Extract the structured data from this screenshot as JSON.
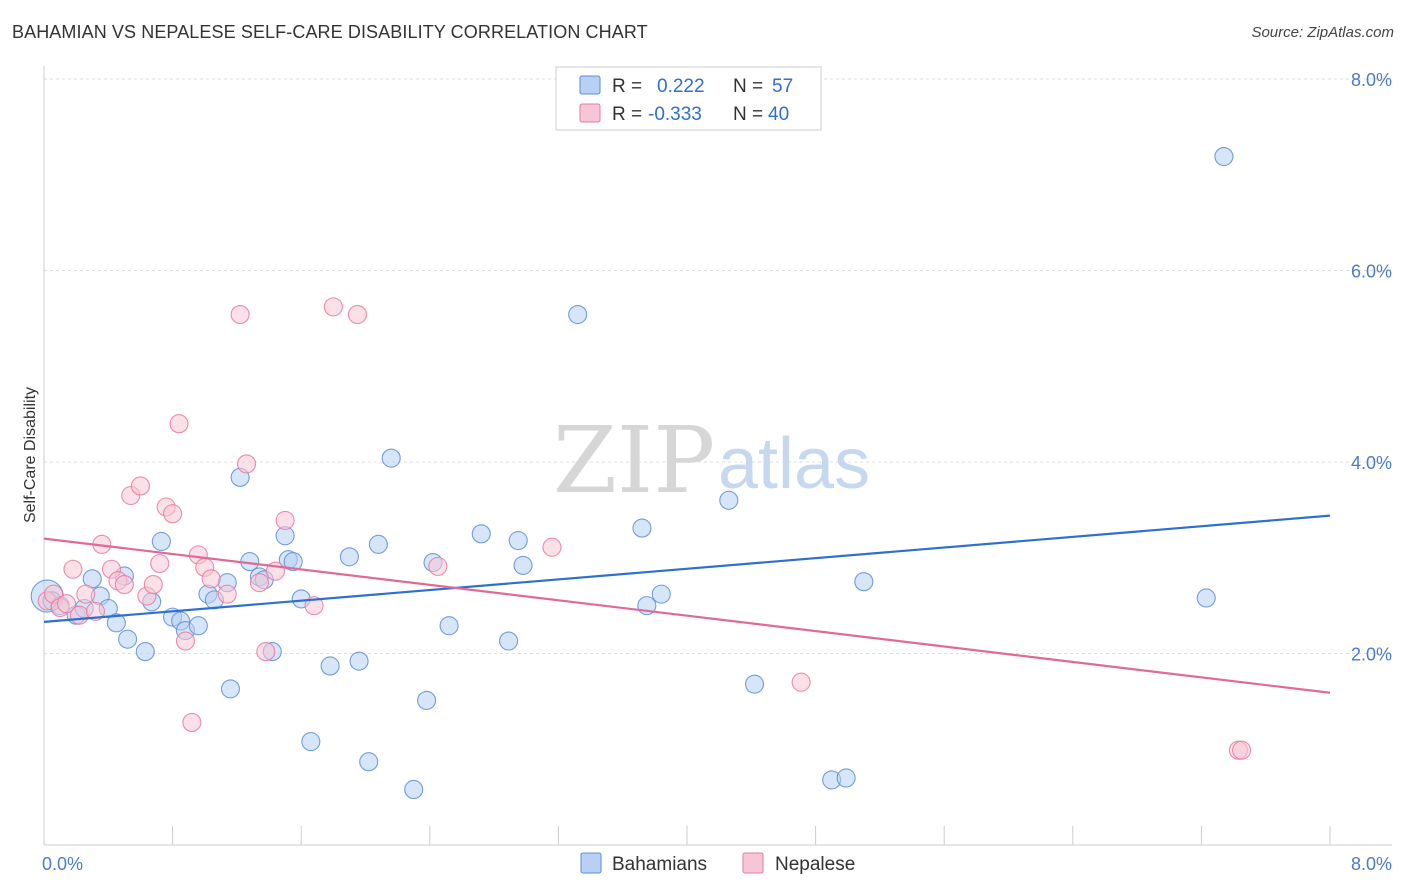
{
  "title": "BAHAMIAN VS NEPALESE SELF-CARE DISABILITY CORRELATION CHART",
  "source": "Source: ZipAtlas.com",
  "watermark": {
    "zip": "ZIP",
    "atlas": "atlas"
  },
  "colors": {
    "blue": "#5b8ed6",
    "blue_fill": "#b7d0f3",
    "blue_line": "#2e6fcf",
    "pink": "#e8799e",
    "pink_fill": "#f7c6d6",
    "pink_line": "#e06a95"
  },
  "legend": {
    "r_label": "R =",
    "n_label": "N =",
    "rows": [
      {
        "r": "0.222",
        "n": "57"
      },
      {
        "r": "-0.333",
        "n": "40"
      }
    ]
  },
  "chart_data": {
    "type": "scatter",
    "title": "BAHAMIAN VS NEPALESE SELF-CARE DISABILITY CORRELATION CHART",
    "xlabel": "",
    "ylabel": "Self-Care Disability",
    "xlim": [
      0,
      8
    ],
    "ylim": [
      0,
      8
    ],
    "x_tick_labels": [
      "0.0%",
      "8.0%"
    ],
    "y_tick_labels": [
      "2.0%",
      "4.0%",
      "6.0%",
      "8.0%"
    ],
    "grid": true,
    "legend_position": "top-center",
    "series": [
      {
        "name": "Bahamians",
        "r": 0.222,
        "n": 57,
        "trend": [
          [
            0,
            2.33
          ],
          [
            8,
            3.44
          ]
        ],
        "points": [
          [
            0.02,
            2.6
          ],
          [
            0.05,
            2.55
          ],
          [
            0.1,
            2.5
          ],
          [
            0.2,
            2.4
          ],
          [
            0.25,
            2.47
          ],
          [
            0.3,
            2.78
          ],
          [
            0.35,
            2.6
          ],
          [
            0.4,
            2.47
          ],
          [
            0.45,
            2.32
          ],
          [
            0.5,
            2.81
          ],
          [
            0.52,
            2.15
          ],
          [
            0.63,
            2.02
          ],
          [
            0.67,
            2.54
          ],
          [
            0.73,
            3.17
          ],
          [
            0.8,
            2.38
          ],
          [
            0.85,
            2.34
          ],
          [
            0.88,
            2.24
          ],
          [
            0.96,
            2.29
          ],
          [
            1.02,
            2.62
          ],
          [
            1.06,
            2.56
          ],
          [
            1.14,
            2.74
          ],
          [
            1.16,
            1.63
          ],
          [
            1.22,
            3.84
          ],
          [
            1.28,
            2.96
          ],
          [
            1.34,
            2.8
          ],
          [
            1.37,
            2.77
          ],
          [
            1.42,
            2.02
          ],
          [
            1.5,
            3.23
          ],
          [
            1.52,
            2.98
          ],
          [
            1.55,
            2.96
          ],
          [
            1.6,
            2.57
          ],
          [
            1.66,
            1.08
          ],
          [
            1.78,
            1.87
          ],
          [
            1.9,
            3.01
          ],
          [
            1.96,
            1.92
          ],
          [
            2.02,
            0.87
          ],
          [
            2.08,
            3.14
          ],
          [
            2.16,
            4.04
          ],
          [
            2.3,
            0.58
          ],
          [
            2.38,
            1.51
          ],
          [
            2.42,
            2.95
          ],
          [
            2.52,
            2.29
          ],
          [
            2.72,
            3.25
          ],
          [
            2.89,
            2.13
          ],
          [
            2.95,
            3.18
          ],
          [
            2.98,
            2.92
          ],
          [
            3.32,
            5.54
          ],
          [
            3.72,
            3.31
          ],
          [
            3.75,
            2.5
          ],
          [
            3.84,
            2.62
          ],
          [
            4.26,
            3.6
          ],
          [
            4.42,
            1.68
          ],
          [
            4.9,
            0.68
          ],
          [
            4.99,
            0.7
          ],
          [
            5.1,
            2.75
          ],
          [
            7.23,
            2.58
          ],
          [
            7.34,
            7.19
          ]
        ]
      },
      {
        "name": "Nepalese",
        "r": -0.333,
        "n": 40,
        "trend": [
          [
            0,
            3.2
          ],
          [
            8,
            1.59
          ]
        ],
        "points": [
          [
            0.02,
            2.55
          ],
          [
            0.06,
            2.62
          ],
          [
            0.1,
            2.48
          ],
          [
            0.14,
            2.52
          ],
          [
            0.18,
            2.88
          ],
          [
            0.22,
            2.4
          ],
          [
            0.26,
            2.62
          ],
          [
            0.32,
            2.44
          ],
          [
            0.36,
            3.14
          ],
          [
            0.42,
            2.88
          ],
          [
            0.46,
            2.76
          ],
          [
            0.5,
            2.72
          ],
          [
            0.54,
            3.65
          ],
          [
            0.6,
            3.75
          ],
          [
            0.64,
            2.6
          ],
          [
            0.68,
            2.72
          ],
          [
            0.72,
            2.94
          ],
          [
            0.76,
            3.53
          ],
          [
            0.8,
            3.46
          ],
          [
            0.84,
            4.4
          ],
          [
            0.88,
            2.13
          ],
          [
            0.92,
            1.28
          ],
          [
            0.96,
            3.03
          ],
          [
            1.0,
            2.9
          ],
          [
            1.04,
            2.78
          ],
          [
            1.14,
            2.62
          ],
          [
            1.22,
            5.54
          ],
          [
            1.26,
            3.98
          ],
          [
            1.34,
            2.74
          ],
          [
            1.38,
            2.02
          ],
          [
            1.44,
            2.86
          ],
          [
            1.5,
            3.39
          ],
          [
            1.68,
            2.5
          ],
          [
            1.8,
            5.62
          ],
          [
            1.95,
            5.54
          ],
          [
            2.45,
            2.91
          ],
          [
            3.16,
            3.11
          ],
          [
            4.71,
            1.7
          ],
          [
            7.43,
            0.99
          ],
          [
            7.45,
            0.99
          ]
        ]
      }
    ]
  }
}
